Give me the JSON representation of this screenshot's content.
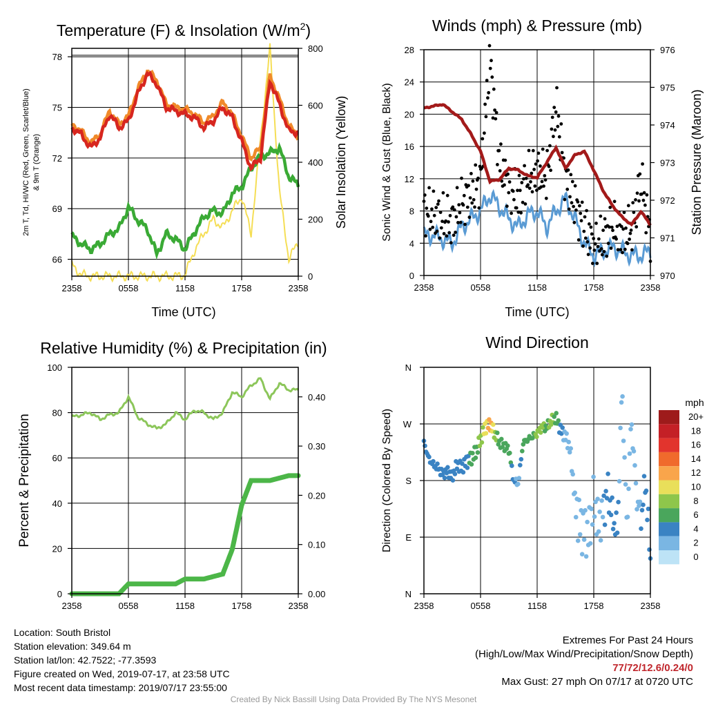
{
  "palette": {
    "red": "#d7261f",
    "orange": "#f08a2a",
    "green": "#3aaa35",
    "yellow": "#f5de55",
    "blue": "#5a9bd4",
    "black": "#000000",
    "maroon": "#a31a1a",
    "rh_green": "#8cc65a",
    "precip_green": "#4cb648"
  },
  "panels": {
    "temp": {
      "title_main": "Temperature (F) & Insolation (W/m",
      "title_sup": "2",
      "title_close": ")",
      "ylabel_left_line1": "2m T, Td, HI/WC (Red, Green, Scarlet/Blue)",
      "ylabel_left_line2": "& 9m T (Orange)",
      "ylabel_right": "Solar Insolation (Yellow)",
      "xlabel": "Time (UTC)"
    },
    "wind": {
      "title": "Winds (mph) & Pressure (mb)",
      "ylabel_left": "Sonic Wind & Gust (Blue, Black)",
      "ylabel_right": "Station Pressure (Maroon)",
      "xlabel": "Time (UTC)"
    },
    "rh": {
      "title": "Relative Humidity (%) & Precipitation (in)",
      "ylabel_left": "Percent & Precipitation"
    },
    "dir": {
      "title": "Wind Direction",
      "ylabel_left": "Direction (Colored By Speed)",
      "colorbar_title": "mph",
      "colorbar_labels": [
        "20+",
        "18",
        "16",
        "14",
        "12",
        "10",
        "8",
        "6",
        "4",
        "2",
        "0"
      ],
      "colorbar_colors": [
        "#9e1b1b",
        "#c42026",
        "#e2342d",
        "#f06a2c",
        "#f9a54b",
        "#e9df5a",
        "#8ec64b",
        "#4aa65c",
        "#3a83c3",
        "#7ab6e3",
        "#bde3f6"
      ]
    }
  },
  "chart_data": [
    {
      "type": "line",
      "x_ticks": [
        "2358",
        "0558",
        "1158",
        "1758",
        "2358"
      ],
      "y_ticks": [
        "66",
        "69",
        "72",
        "75",
        "78"
      ],
      "ylim": [
        65,
        78.5
      ],
      "y2_ticks": [
        "0",
        "200",
        "400",
        "600",
        "800"
      ],
      "y2lim": [
        0,
        800
      ],
      "grid": true,
      "x_hours": [
        0,
        1,
        2,
        3,
        4,
        5,
        6,
        7,
        8,
        9,
        10,
        11,
        12,
        13,
        14,
        15,
        16,
        17,
        18,
        19,
        20,
        21,
        22,
        23,
        24
      ],
      "series": [
        {
          "key": "t2m",
          "values": [
            73.8,
            73.4,
            72.6,
            73.2,
            74.6,
            73.8,
            74.2,
            75.8,
            77.0,
            76.4,
            75.0,
            74.8,
            74.6,
            74.4,
            73.8,
            74.2,
            75.0,
            74.4,
            73.0,
            71.4,
            72.0,
            76.6,
            75.2,
            73.6,
            73.5
          ]
        },
        {
          "key": "t9m",
          "values": [
            74.0,
            73.6,
            72.9,
            73.4,
            74.8,
            74.0,
            74.5,
            76.1,
            77.2,
            76.6,
            75.2,
            75.0,
            74.9,
            74.6,
            74.1,
            74.5,
            75.3,
            74.6,
            73.3,
            72.0,
            72.6,
            76.9,
            75.5,
            73.9,
            73.3
          ]
        },
        {
          "key": "td",
          "values": [
            67.4,
            66.9,
            66.6,
            66.9,
            67.5,
            67.8,
            69.1,
            68.3,
            67.8,
            66.3,
            67.5,
            67.2,
            66.6,
            67.6,
            68.5,
            68.9,
            68.7,
            69.9,
            70.3,
            71.4,
            72.1,
            72.3,
            72.6,
            70.9,
            70.4
          ]
        },
        {
          "key": "solar",
          "values": [
            40,
            5,
            0,
            0,
            0,
            0,
            0,
            0,
            0,
            0,
            0,
            0,
            5,
            90,
            150,
            200,
            170,
            230,
            280,
            150,
            480,
            800,
            300,
            60,
            120
          ]
        }
      ]
    },
    {
      "type": "scatter",
      "x_ticks": [
        "2358",
        "0558",
        "1158",
        "1758",
        "2358"
      ],
      "y_ticks": [
        "0",
        "4",
        "8",
        "12",
        "16",
        "20",
        "24",
        "28"
      ],
      "ylim": [
        0,
        28
      ],
      "y2_ticks": [
        "970",
        "971",
        "972",
        "973",
        "974",
        "975",
        "976"
      ],
      "y2lim": [
        970,
        976
      ],
      "grid": true,
      "x_hours": [
        0,
        1,
        2,
        3,
        4,
        5,
        6,
        7,
        8,
        9,
        10,
        11,
        12,
        13,
        14,
        15,
        16,
        17,
        18,
        19,
        20,
        21,
        22,
        23,
        24
      ],
      "series": [
        {
          "key": "wind",
          "values": [
            5.0,
            5.0,
            4.5,
            4.0,
            6.0,
            7.0,
            8.0,
            10.0,
            8.5,
            7.0,
            6.0,
            7.5,
            8.0,
            6.0,
            8.0,
            9.5,
            7.0,
            4.0,
            2.5,
            3.0,
            3.5,
            3.0,
            2.5,
            2.5,
            3.0
          ]
        },
        {
          "key": "gust",
          "values": [
            8.0,
            7.5,
            7.0,
            6.5,
            9.0,
            10.0,
            12.0,
            27.0,
            14.0,
            11.0,
            9.5,
            12.0,
            13.0,
            12.0,
            21.2,
            12.0,
            9.0,
            6.0,
            3.5,
            4.5,
            6.0,
            5.0,
            5.5,
            12.0,
            5.0
          ]
        },
        {
          "key": "pressure",
          "values": [
            974.45,
            974.5,
            974.55,
            974.35,
            974.15,
            973.75,
            973.3,
            972.5,
            972.55,
            972.85,
            972.8,
            972.65,
            972.6,
            973.0,
            973.4,
            972.85,
            973.2,
            973.3,
            972.8,
            972.25,
            971.85,
            971.55,
            971.35,
            971.7,
            971.35
          ]
        }
      ]
    },
    {
      "type": "line",
      "x_ticks": [
        "2358",
        "0558",
        "1158",
        "1758",
        "2358"
      ],
      "y_ticks": [
        "0",
        "20",
        "40",
        "60",
        "80",
        "100"
      ],
      "ylim": [
        0,
        100
      ],
      "y2_ticks": [
        "0.00",
        "0.10",
        "0.20",
        "0.30",
        "0.40"
      ],
      "y2lim": [
        0,
        0.46
      ],
      "grid": true,
      "x_hours": [
        0,
        1,
        2,
        3,
        4,
        5,
        6,
        7,
        8,
        9,
        10,
        11,
        12,
        13,
        14,
        15,
        16,
        17,
        18,
        19,
        20,
        21,
        22,
        23,
        24
      ],
      "series": [
        {
          "key": "rh",
          "values": [
            78,
            79,
            80,
            77,
            79,
            80,
            87,
            78,
            75,
            73,
            75,
            80,
            77,
            81,
            80,
            77,
            80,
            89,
            87,
            92,
            95,
            86,
            93,
            90,
            90
          ]
        },
        {
          "key": "precip",
          "values": [
            0,
            0,
            0,
            0,
            0,
            0,
            0.02,
            0.02,
            0.02,
            0.02,
            0.02,
            0.02,
            0.03,
            0.03,
            0.03,
            0.035,
            0.04,
            0.09,
            0.18,
            0.23,
            0.23,
            0.23,
            0.235,
            0.24,
            0.24
          ]
        }
      ]
    },
    {
      "type": "scatter",
      "x_ticks": [
        "2358",
        "0558",
        "1158",
        "1758",
        "2358"
      ],
      "y_ticks": [
        "N",
        "E",
        "S",
        "W",
        "N"
      ],
      "ylim": [
        0,
        360
      ],
      "grid": true,
      "x_hours": [
        0,
        0.5,
        1,
        1.5,
        2,
        2.5,
        3,
        3.5,
        4,
        4.5,
        5,
        5.5,
        6,
        6.5,
        7,
        7.5,
        8,
        8.5,
        9,
        9.5,
        10,
        10.5,
        11,
        11.5,
        12,
        12.5,
        13,
        13.5,
        14,
        14.5,
        15,
        15.5,
        16,
        16.5,
        17,
        17.5,
        18,
        18.5,
        19,
        19.5,
        20,
        20.5,
        21,
        21.5,
        22,
        22.5,
        23,
        23.5,
        24
      ],
      "series": [
        {
          "key": "direction",
          "values": [
            240,
            215,
            205,
            200,
            190,
            195,
            185,
            205,
            200,
            210,
            215,
            225,
            245,
            265,
            270,
            255,
            240,
            235,
            230,
            180,
            175,
            240,
            245,
            250,
            255,
            265,
            265,
            275,
            280,
            260,
            250,
            230,
            150,
            110,
            100,
            95,
            150,
            110,
            130,
            165,
            120,
            100,
            330,
            105,
            280,
            160,
            120,
            180,
            50
          ],
          "speeds": [
            4,
            3,
            4,
            3,
            4,
            3,
            4,
            3,
            3,
            4,
            6,
            6,
            8,
            10,
            12,
            8,
            6,
            5,
            6,
            4,
            2,
            6,
            6,
            5,
            8,
            8,
            6,
            8,
            6,
            4,
            2,
            2,
            2,
            1,
            2,
            1,
            2,
            2,
            3,
            4,
            3,
            4,
            1,
            2,
            1,
            2,
            3,
            4,
            3
          ]
        }
      ]
    }
  ],
  "info": {
    "location": "Location: South Bristol",
    "elevation": "Station elevation: 349.64 m",
    "latlon": "Station lat/lon: 42.7522; -77.3593",
    "created": "Figure created on Wed, 2019-07-17, at 23:58 UTC",
    "recent": "Most recent data timestamp: 2019/07/17 23:55:00"
  },
  "extremes": {
    "heading": "Extremes For Past 24 Hours",
    "legend": "(High/Low/Max Wind/Precipitation/Snow Depth)",
    "values": "77/72/12.6/0.24/0",
    "gust": "Max Gust: 27 mph On 07/17 at 0720 UTC"
  },
  "credit": "Created By Nick Bassill Using Data Provided By The NYS Mesonet"
}
